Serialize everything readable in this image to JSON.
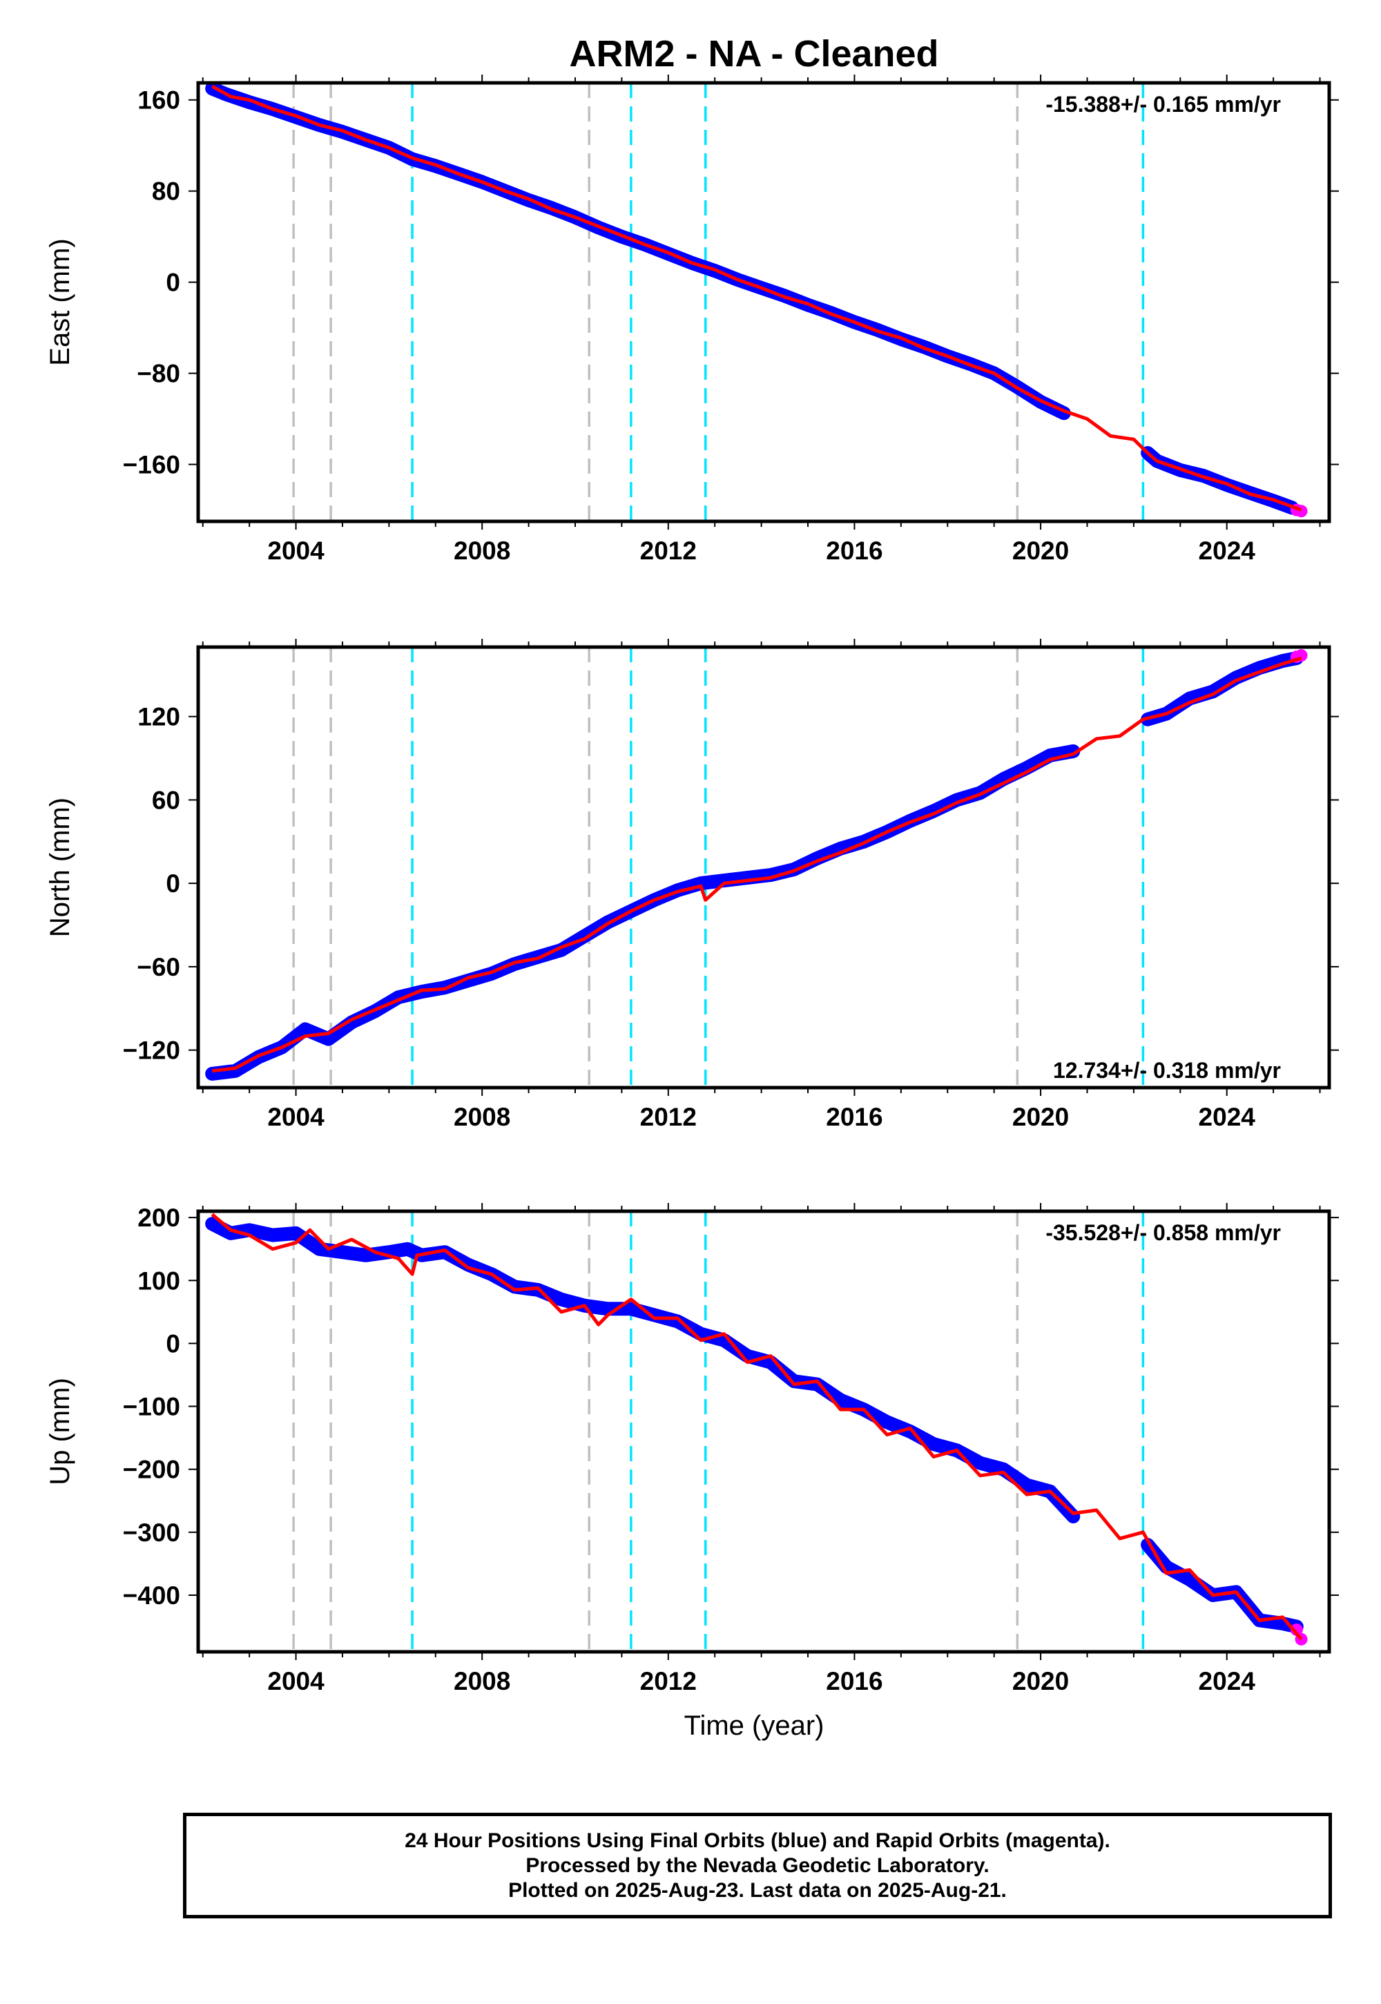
{
  "title": "ARM2  - NA - Cleaned",
  "xlabel": "Time (year)",
  "colors": {
    "final_orbits": "#0000ff",
    "rapid_orbits": "#ff00ff",
    "model": "#ff0000",
    "event_gray": "#c0c0c0",
    "event_cyan": "#00e5ff"
  },
  "footer": {
    "line1": "24 Hour Positions Using Final Orbits (blue) and Rapid Orbits (magenta).",
    "line2": "Processed by the Nevada Geodetic Laboratory.",
    "line3": "Plotted on 2025-Aug-23. Last data on 2025-Aug-21."
  },
  "chart_data": [
    {
      "type": "scatter",
      "component": "east",
      "ylabel": "East (mm)",
      "rate_label": "-15.388+/- 0.165 mm/yr",
      "xlim": [
        2001.9,
        2026.2
      ],
      "ylim": [
        -210,
        175
      ],
      "xticks": [
        2004,
        2008,
        2012,
        2016,
        2020,
        2024
      ],
      "yticks": [
        -160,
        -80,
        0,
        80,
        160
      ],
      "grid": false,
      "events_gray": [
        2003.95,
        2004.75,
        2010.3,
        2019.5
      ],
      "events_cyan": [
        2006.5,
        2011.2,
        2012.8,
        2022.2
      ],
      "final_orbits": [
        [
          2002.2,
          170
        ],
        [
          2002.5,
          165
        ],
        [
          2003.0,
          158
        ],
        [
          2003.5,
          152
        ],
        [
          2004.0,
          145
        ],
        [
          2004.5,
          138
        ],
        [
          2005.0,
          132
        ],
        [
          2005.5,
          125
        ],
        [
          2006.0,
          118
        ],
        [
          2006.5,
          108
        ],
        [
          2007.0,
          102
        ],
        [
          2007.5,
          95
        ],
        [
          2008.0,
          88
        ],
        [
          2008.5,
          80
        ],
        [
          2009.0,
          72
        ],
        [
          2009.5,
          65
        ],
        [
          2010.0,
          57
        ],
        [
          2010.5,
          48
        ],
        [
          2011.0,
          40
        ],
        [
          2011.5,
          33
        ],
        [
          2012.0,
          25
        ],
        [
          2012.5,
          17
        ],
        [
          2013.0,
          10
        ],
        [
          2013.5,
          2
        ],
        [
          2014.0,
          -5
        ],
        [
          2014.5,
          -12
        ],
        [
          2015.0,
          -20
        ],
        [
          2015.5,
          -27
        ],
        [
          2016.0,
          -35
        ],
        [
          2016.5,
          -42
        ],
        [
          2017.0,
          -50
        ],
        [
          2017.5,
          -57
        ],
        [
          2018.0,
          -65
        ],
        [
          2018.5,
          -72
        ],
        [
          2019.0,
          -80
        ],
        [
          2019.5,
          -92
        ],
        [
          2020.0,
          -105
        ],
        [
          2020.5,
          -115
        ],
        [
          2022.3,
          -150
        ],
        [
          2022.5,
          -157
        ],
        [
          2023.0,
          -165
        ],
        [
          2023.5,
          -170
        ],
        [
          2024.0,
          -178
        ],
        [
          2024.5,
          -185
        ],
        [
          2025.0,
          -192
        ],
        [
          2025.4,
          -198
        ]
      ],
      "rapid_orbits": [
        [
          2025.5,
          -200
        ],
        [
          2025.6,
          -201
        ]
      ],
      "model": [
        [
          2002.2,
          172
        ],
        [
          2002.6,
          163
        ],
        [
          2003.0,
          160
        ],
        [
          2003.5,
          152
        ],
        [
          2004.0,
          146
        ],
        [
          2004.5,
          138
        ],
        [
          2005.0,
          133
        ],
        [
          2005.5,
          125
        ],
        [
          2006.0,
          118
        ],
        [
          2006.5,
          109
        ],
        [
          2007.0,
          103
        ],
        [
          2007.5,
          95
        ],
        [
          2008.0,
          88
        ],
        [
          2008.5,
          80
        ],
        [
          2009.0,
          73
        ],
        [
          2009.5,
          64
        ],
        [
          2010.0,
          57
        ],
        [
          2010.5,
          49
        ],
        [
          2011.0,
          41
        ],
        [
          2011.5,
          33
        ],
        [
          2012.0,
          26
        ],
        [
          2012.5,
          17
        ],
        [
          2013.0,
          11
        ],
        [
          2013.5,
          2
        ],
        [
          2014.0,
          -5
        ],
        [
          2014.5,
          -13
        ],
        [
          2015.0,
          -19
        ],
        [
          2015.5,
          -28
        ],
        [
          2016.0,
          -35
        ],
        [
          2016.5,
          -43
        ],
        [
          2017.0,
          -49
        ],
        [
          2017.5,
          -58
        ],
        [
          2018.0,
          -65
        ],
        [
          2018.5,
          -73
        ],
        [
          2019.0,
          -80
        ],
        [
          2019.5,
          -93
        ],
        [
          2020.0,
          -104
        ],
        [
          2020.5,
          -113
        ],
        [
          2021.0,
          -120
        ],
        [
          2021.5,
          -135
        ],
        [
          2022.0,
          -138
        ],
        [
          2022.3,
          -150
        ],
        [
          2022.5,
          -157
        ],
        [
          2023.0,
          -164
        ],
        [
          2023.5,
          -171
        ],
        [
          2024.0,
          -177
        ],
        [
          2024.5,
          -186
        ],
        [
          2025.0,
          -191
        ],
        [
          2025.6,
          -200
        ]
      ]
    },
    {
      "type": "scatter",
      "component": "north",
      "ylabel": "North (mm)",
      "rate_label": "12.734+/- 0.318 mm/yr",
      "xlim": [
        2001.9,
        2026.2
      ],
      "ylim": [
        -147,
        170
      ],
      "xticks": [
        2004,
        2008,
        2012,
        2016,
        2020,
        2024
      ],
      "yticks": [
        -120,
        -60,
        0,
        60,
        120
      ],
      "grid": false,
      "events_gray": [
        2003.95,
        2004.75,
        2010.3,
        2019.5
      ],
      "events_cyan": [
        2006.5,
        2011.2,
        2012.8,
        2022.2
      ],
      "final_orbits": [
        [
          2002.2,
          -137
        ],
        [
          2002.7,
          -135
        ],
        [
          2003.2,
          -125
        ],
        [
          2003.7,
          -118
        ],
        [
          2004.2,
          -105
        ],
        [
          2004.7,
          -112
        ],
        [
          2005.2,
          -100
        ],
        [
          2005.7,
          -92
        ],
        [
          2006.2,
          -82
        ],
        [
          2006.7,
          -78
        ],
        [
          2007.2,
          -75
        ],
        [
          2007.7,
          -70
        ],
        [
          2008.2,
          -65
        ],
        [
          2008.7,
          -58
        ],
        [
          2009.2,
          -53
        ],
        [
          2009.7,
          -48
        ],
        [
          2010.2,
          -38
        ],
        [
          2010.7,
          -28
        ],
        [
          2011.2,
          -20
        ],
        [
          2011.7,
          -12
        ],
        [
          2012.2,
          -5
        ],
        [
          2012.7,
          0
        ],
        [
          2013.2,
          2
        ],
        [
          2013.7,
          4
        ],
        [
          2014.2,
          6
        ],
        [
          2014.7,
          10
        ],
        [
          2015.2,
          18
        ],
        [
          2015.7,
          25
        ],
        [
          2016.2,
          30
        ],
        [
          2016.7,
          37
        ],
        [
          2017.2,
          45
        ],
        [
          2017.7,
          52
        ],
        [
          2018.2,
          60
        ],
        [
          2018.7,
          65
        ],
        [
          2019.2,
          75
        ],
        [
          2019.7,
          83
        ],
        [
          2020.2,
          92
        ],
        [
          2020.7,
          95
        ],
        [
          2022.3,
          118
        ],
        [
          2022.7,
          122
        ],
        [
          2023.2,
          133
        ],
        [
          2023.7,
          138
        ],
        [
          2024.2,
          148
        ],
        [
          2024.7,
          155
        ],
        [
          2025.2,
          160
        ],
        [
          2025.5,
          162
        ]
      ],
      "rapid_orbits": [
        [
          2025.5,
          163
        ],
        [
          2025.6,
          164
        ]
      ],
      "model": [
        [
          2002.2,
          -135
        ],
        [
          2002.7,
          -133
        ],
        [
          2003.2,
          -124
        ],
        [
          2003.7,
          -118
        ],
        [
          2004.2,
          -110
        ],
        [
          2004.7,
          -108
        ],
        [
          2005.2,
          -98
        ],
        [
          2005.7,
          -91
        ],
        [
          2006.2,
          -84
        ],
        [
          2006.7,
          -77
        ],
        [
          2007.2,
          -76
        ],
        [
          2007.7,
          -68
        ],
        [
          2008.2,
          -64
        ],
        [
          2008.7,
          -57
        ],
        [
          2009.2,
          -54
        ],
        [
          2009.7,
          -46
        ],
        [
          2010.2,
          -40
        ],
        [
          2010.7,
          -29
        ],
        [
          2011.2,
          -20
        ],
        [
          2011.7,
          -12
        ],
        [
          2012.2,
          -6
        ],
        [
          2012.7,
          -2
        ],
        [
          2012.8,
          -12
        ],
        [
          2013.2,
          0
        ],
        [
          2013.7,
          2
        ],
        [
          2014.2,
          4
        ],
        [
          2014.7,
          9
        ],
        [
          2015.2,
          16
        ],
        [
          2015.7,
          22
        ],
        [
          2016.2,
          29
        ],
        [
          2016.7,
          37
        ],
        [
          2017.2,
          44
        ],
        [
          2017.7,
          50
        ],
        [
          2018.2,
          58
        ],
        [
          2018.7,
          64
        ],
        [
          2019.2,
          72
        ],
        [
          2019.7,
          80
        ],
        [
          2020.2,
          89
        ],
        [
          2020.7,
          93
        ],
        [
          2021.2,
          104
        ],
        [
          2021.7,
          106
        ],
        [
          2022.2,
          118
        ],
        [
          2022.7,
          122
        ],
        [
          2023.2,
          130
        ],
        [
          2023.7,
          136
        ],
        [
          2024.2,
          146
        ],
        [
          2024.7,
          152
        ],
        [
          2025.2,
          158
        ],
        [
          2025.6,
          162
        ]
      ]
    },
    {
      "type": "scatter",
      "component": "up",
      "ylabel": "Up (mm)",
      "rate_label": "-35.528+/- 0.858 mm/yr",
      "xlim": [
        2001.9,
        2026.2
      ],
      "ylim": [
        -490,
        210
      ],
      "xticks": [
        2004,
        2008,
        2012,
        2016,
        2020,
        2024
      ],
      "yticks": [
        -400,
        -300,
        -200,
        -100,
        0,
        100,
        200
      ],
      "grid": false,
      "events_gray": [
        2003.95,
        2004.75,
        2010.3,
        2019.5
      ],
      "events_cyan": [
        2006.5,
        2011.2,
        2012.8,
        2022.2
      ],
      "final_orbits": [
        [
          2002.2,
          190
        ],
        [
          2002.6,
          175
        ],
        [
          2003.0,
          180
        ],
        [
          2003.5,
          172
        ],
        [
          2004.0,
          175
        ],
        [
          2004.5,
          150
        ],
        [
          2005.0,
          145
        ],
        [
          2005.5,
          140
        ],
        [
          2006.0,
          145
        ],
        [
          2006.4,
          150
        ],
        [
          2006.7,
          140
        ],
        [
          2007.2,
          145
        ],
        [
          2007.7,
          125
        ],
        [
          2008.2,
          110
        ],
        [
          2008.7,
          90
        ],
        [
          2009.2,
          85
        ],
        [
          2009.7,
          70
        ],
        [
          2010.2,
          60
        ],
        [
          2010.7,
          55
        ],
        [
          2011.2,
          55
        ],
        [
          2011.7,
          45
        ],
        [
          2012.2,
          35
        ],
        [
          2012.7,
          15
        ],
        [
          2013.2,
          5
        ],
        [
          2013.7,
          -20
        ],
        [
          2014.2,
          -30
        ],
        [
          2014.7,
          -60
        ],
        [
          2015.2,
          -65
        ],
        [
          2015.7,
          -90
        ],
        [
          2016.2,
          -105
        ],
        [
          2016.7,
          -125
        ],
        [
          2017.2,
          -140
        ],
        [
          2017.7,
          -160
        ],
        [
          2018.2,
          -170
        ],
        [
          2018.7,
          -190
        ],
        [
          2019.2,
          -200
        ],
        [
          2019.7,
          -225
        ],
        [
          2020.2,
          -235
        ],
        [
          2020.7,
          -275
        ],
        [
          2022.3,
          -320
        ],
        [
          2022.7,
          -355
        ],
        [
          2023.2,
          -375
        ],
        [
          2023.7,
          -400
        ],
        [
          2024.2,
          -395
        ],
        [
          2024.7,
          -440
        ],
        [
          2025.2,
          -445
        ],
        [
          2025.5,
          -450
        ]
      ],
      "rapid_orbits": [
        [
          2025.5,
          -455
        ],
        [
          2025.6,
          -470
        ]
      ],
      "model": [
        [
          2002.2,
          205
        ],
        [
          2002.6,
          180
        ],
        [
          2003.0,
          172
        ],
        [
          2003.5,
          150
        ],
        [
          2004.0,
          160
        ],
        [
          2004.3,
          180
        ],
        [
          2004.7,
          150
        ],
        [
          2005.2,
          165
        ],
        [
          2005.7,
          145
        ],
        [
          2006.2,
          135
        ],
        [
          2006.5,
          110
        ],
        [
          2006.6,
          140
        ],
        [
          2007.2,
          148
        ],
        [
          2007.7,
          120
        ],
        [
          2008.2,
          110
        ],
        [
          2008.7,
          85
        ],
        [
          2009.2,
          88
        ],
        [
          2009.7,
          50
        ],
        [
          2010.2,
          60
        ],
        [
          2010.5,
          30
        ],
        [
          2010.7,
          45
        ],
        [
          2011.2,
          70
        ],
        [
          2011.7,
          40
        ],
        [
          2012.2,
          40
        ],
        [
          2012.7,
          5
        ],
        [
          2013.2,
          15
        ],
        [
          2013.7,
          -30
        ],
        [
          2014.2,
          -20
        ],
        [
          2014.7,
          -65
        ],
        [
          2015.2,
          -60
        ],
        [
          2015.7,
          -105
        ],
        [
          2016.2,
          -105
        ],
        [
          2016.7,
          -145
        ],
        [
          2017.2,
          -135
        ],
        [
          2017.7,
          -180
        ],
        [
          2018.2,
          -170
        ],
        [
          2018.7,
          -210
        ],
        [
          2019.2,
          -205
        ],
        [
          2019.7,
          -240
        ],
        [
          2020.2,
          -235
        ],
        [
          2020.7,
          -270
        ],
        [
          2021.2,
          -265
        ],
        [
          2021.7,
          -310
        ],
        [
          2022.2,
          -300
        ],
        [
          2022.7,
          -365
        ],
        [
          2023.2,
          -360
        ],
        [
          2023.7,
          -400
        ],
        [
          2024.2,
          -395
        ],
        [
          2024.7,
          -440
        ],
        [
          2025.2,
          -435
        ],
        [
          2025.6,
          -470
        ]
      ]
    }
  ]
}
